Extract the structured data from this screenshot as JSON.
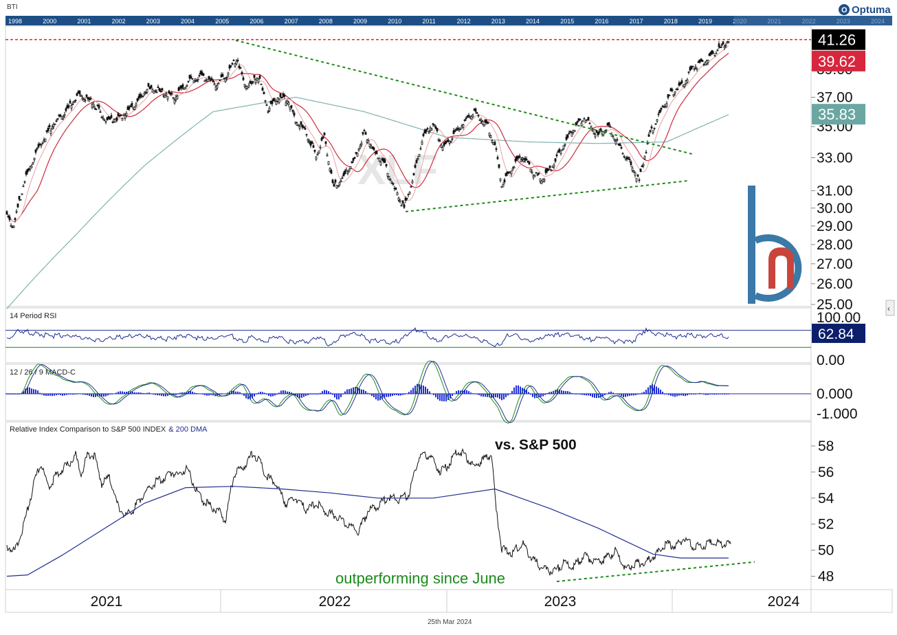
{
  "header": {
    "symbol": "BTI",
    "brand": "Optuma",
    "footer_date": "25th Mar 2024",
    "watermark": "XLF",
    "timeline_years": [
      "1998",
      "2000",
      "2001",
      "2002",
      "2003",
      "2004",
      "2005",
      "2006",
      "2007",
      "2008",
      "2009",
      "2010",
      "2011",
      "2012",
      "2013",
      "2014",
      "2015",
      "2016",
      "2017",
      "2018",
      "2019",
      "2020",
      "2021",
      "2022",
      "2023",
      "2024"
    ]
  },
  "chart_data": [
    {
      "type": "line",
      "pane": "price",
      "title": "",
      "x_labels": [
        "2021",
        "2022",
        "2023",
        "2024"
      ],
      "y_ticks": [
        "25.00",
        "26.00",
        "27.00",
        "28.00",
        "29.00",
        "30.00",
        "31.00",
        "33.00",
        "35.00",
        "37.00",
        "39.00"
      ],
      "ylim": [
        25,
        42
      ],
      "scale": "log",
      "price_path": [
        [
          0,
          29.5
        ],
        [
          10,
          29.0
        ],
        [
          25,
          31.5
        ],
        [
          45,
          33.5
        ],
        [
          65,
          35.0
        ],
        [
          85,
          36.0
        ],
        [
          105,
          37.2
        ],
        [
          125,
          36.6
        ],
        [
          145,
          35.4
        ],
        [
          165,
          35.6
        ],
        [
          185,
          36.4
        ],
        [
          205,
          37.6
        ],
        [
          225,
          37.4
        ],
        [
          245,
          37.0
        ],
        [
          265,
          38.2
        ],
        [
          285,
          38.5
        ],
        [
          305,
          37.9
        ],
        [
          320,
          38.6
        ],
        [
          335,
          39.9
        ],
        [
          345,
          38.0
        ],
        [
          355,
          37.8
        ],
        [
          365,
          38.6
        ],
        [
          380,
          36.2
        ],
        [
          395,
          37.0
        ],
        [
          410,
          36.8
        ],
        [
          420,
          35.4
        ],
        [
          435,
          34.6
        ],
        [
          450,
          33.2
        ],
        [
          462,
          34.3
        ],
        [
          475,
          31.2
        ],
        [
          490,
          31.8
        ],
        [
          505,
          32.8
        ],
        [
          520,
          34.6
        ],
        [
          535,
          33.3
        ],
        [
          550,
          32.6
        ],
        [
          565,
          31.0
        ],
        [
          578,
          30.0
        ],
        [
          590,
          31.6
        ],
        [
          605,
          34.2
        ],
        [
          620,
          35.2
        ],
        [
          635,
          33.6
        ],
        [
          650,
          34.4
        ],
        [
          665,
          35.3
        ],
        [
          680,
          36.0
        ],
        [
          700,
          35.0
        ],
        [
          710,
          33.8
        ],
        [
          720,
          31.4
        ],
        [
          735,
          32.4
        ],
        [
          750,
          33.1
        ],
        [
          765,
          32.1
        ],
        [
          780,
          31.7
        ],
        [
          795,
          32.6
        ],
        [
          810,
          33.8
        ],
        [
          825,
          34.9
        ],
        [
          840,
          35.6
        ],
        [
          860,
          34.4
        ],
        [
          875,
          35.1
        ],
        [
          890,
          33.8
        ],
        [
          905,
          32.8
        ],
        [
          920,
          31.6
        ],
        [
          935,
          34.4
        ],
        [
          950,
          35.9
        ],
        [
          965,
          37.2
        ],
        [
          985,
          38.0
        ],
        [
          1000,
          39.2
        ],
        [
          1015,
          39.6
        ],
        [
          1030,
          40.3
        ],
        [
          1045,
          40.9
        ],
        [
          1050,
          41.3
        ]
      ],
      "series": [
        {
          "name": "",
          "color": "#111111",
          "values_ref": "price_path"
        },
        {
          "name": "",
          "color": "#e8a0a0"
        },
        {
          "name": "",
          "color": "#cc2a3a"
        },
        {
          "name": "",
          "color": "#7fb2b0"
        }
      ],
      "last_values": [
        {
          "value": "41.26",
          "bg": "#000000"
        },
        {
          "value": "39.62",
          "bg": "#d7263d"
        },
        {
          "value": "35.83",
          "bg": "#6aa6a2"
        }
      ],
      "resistance_level": 41.26,
      "trendlines": [
        {
          "from": [
            333,
            41.2
          ],
          "to": [
            1000,
            33.2
          ]
        },
        {
          "from": [
            580,
            29.8
          ],
          "to": [
            993,
            31.6
          ]
        }
      ]
    },
    {
      "type": "line",
      "pane": "rsi",
      "title": "14 Period RSI",
      "y_ticks": [
        "100.00",
        "0.00"
      ],
      "levels": [
        70,
        30
      ],
      "last_value": "62.84"
    },
    {
      "type": "bar",
      "pane": "macd",
      "title": "12 / 26 / 9 MACD-C",
      "y_ticks": [
        "0.000",
        "-1.000"
      ]
    },
    {
      "type": "line",
      "pane": "relative",
      "title_part1": "Relative Index Comparison to S&P 500 INDEX",
      "title_part2": "& 200 DMA",
      "annotation": "vs. S&P 500",
      "annotation2": "outperforming since June",
      "y_ticks": [
        "48",
        "50",
        "52",
        "54",
        "56",
        "58"
      ],
      "ylim": [
        47.5,
        59
      ],
      "ratio_path": [
        [
          0,
          50.3
        ],
        [
          12,
          50.0
        ],
        [
          25,
          52.0
        ],
        [
          40,
          55.3
        ],
        [
          50,
          56.6
        ],
        [
          60,
          54.8
        ],
        [
          75,
          56.0
        ],
        [
          90,
          56.6
        ],
        [
          100,
          57.3
        ],
        [
          108,
          55.8
        ],
        [
          118,
          57.4
        ],
        [
          128,
          57.2
        ],
        [
          138,
          55.1
        ],
        [
          150,
          55.6
        ],
        [
          160,
          53.6
        ],
        [
          172,
          52.6
        ],
        [
          185,
          53.2
        ],
        [
          200,
          54.4
        ],
        [
          215,
          55.2
        ],
        [
          225,
          55.4
        ],
        [
          240,
          56.0
        ],
        [
          250,
          55.8
        ],
        [
          262,
          56.3
        ],
        [
          275,
          54.7
        ],
        [
          285,
          53.8
        ],
        [
          298,
          53.3
        ],
        [
          310,
          53.0
        ],
        [
          318,
          52.2
        ],
        [
          330,
          55.8
        ],
        [
          345,
          56.4
        ],
        [
          358,
          57.5
        ],
        [
          368,
          56.8
        ],
        [
          378,
          55.6
        ],
        [
          390,
          55.3
        ],
        [
          405,
          53.6
        ],
        [
          420,
          54.0
        ],
        [
          435,
          53.1
        ],
        [
          450,
          53.6
        ],
        [
          465,
          52.9
        ],
        [
          480,
          52.6
        ],
        [
          498,
          51.9
        ],
        [
          512,
          51.4
        ],
        [
          525,
          53.0
        ],
        [
          540,
          53.4
        ],
        [
          555,
          54.1
        ],
        [
          570,
          53.9
        ],
        [
          585,
          54.3
        ],
        [
          600,
          57.2
        ],
        [
          615,
          57.3
        ],
        [
          630,
          56.1
        ],
        [
          642,
          56.5
        ],
        [
          655,
          57.6
        ],
        [
          665,
          57.4
        ],
        [
          680,
          56.4
        ],
        [
          695,
          57.0
        ],
        [
          705,
          57.3
        ],
        [
          712,
          53.0
        ],
        [
          720,
          50.1
        ],
        [
          735,
          49.8
        ],
        [
          750,
          50.5
        ],
        [
          765,
          49.3
        ],
        [
          780,
          48.6
        ],
        [
          795,
          48.3
        ],
        [
          810,
          49.0
        ],
        [
          825,
          48.8
        ],
        [
          840,
          49.6
        ],
        [
          855,
          49.2
        ],
        [
          870,
          49.3
        ],
        [
          885,
          49.9
        ],
        [
          900,
          48.6
        ],
        [
          915,
          49.0
        ],
        [
          930,
          49.1
        ],
        [
          945,
          49.7
        ],
        [
          960,
          50.5
        ],
        [
          975,
          50.3
        ],
        [
          985,
          51.0
        ],
        [
          1000,
          50.2
        ],
        [
          1015,
          50.4
        ],
        [
          1030,
          50.6
        ],
        [
          1045,
          50.5
        ],
        [
          1053,
          50.4
        ]
      ],
      "dma_path": [
        [
          0,
          48.0
        ],
        [
          30,
          48.1
        ],
        [
          80,
          49.6
        ],
        [
          140,
          51.6
        ],
        [
          200,
          53.6
        ],
        [
          260,
          54.8
        ],
        [
          330,
          54.9
        ],
        [
          400,
          54.7
        ],
        [
          470,
          54.4
        ],
        [
          540,
          54.0
        ],
        [
          620,
          54.0
        ],
        [
          710,
          54.7
        ],
        [
          790,
          53.2
        ],
        [
          860,
          51.7
        ],
        [
          940,
          49.7
        ],
        [
          980,
          49.4
        ],
        [
          1050,
          49.4
        ]
      ],
      "ratio_color": "#111111",
      "dma_color": "#1f2c8f",
      "trendline": {
        "from": [
          800,
          47.6
        ],
        "to": [
          1088,
          49.1
        ]
      }
    }
  ]
}
